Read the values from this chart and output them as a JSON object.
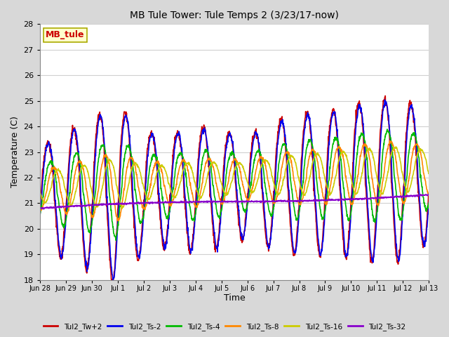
{
  "title": "MB Tule Tower: Tule Temps 2 (3/23/17-now)",
  "xlabel": "Time",
  "ylabel": "Temperature (C)",
  "ylim": [
    18.0,
    28.0
  ],
  "yticks": [
    18.0,
    19.0,
    20.0,
    21.0,
    22.0,
    23.0,
    24.0,
    25.0,
    26.0,
    27.0,
    28.0
  ],
  "xtick_labels": [
    "Jun 28",
    "Jun 29",
    "Jun 30",
    "Jul 1",
    "Jul 2",
    "Jul 3",
    "Jul 4",
    "Jul 5",
    "Jul 6",
    "Jul 7",
    "Jul 8",
    "Jul 9",
    "Jul 10",
    "Jul 11",
    "Jul 12",
    "Jul 13"
  ],
  "fig_bg_color": "#d8d8d8",
  "plot_bg_color": "#ffffff",
  "grid_color": "#d0d0d0",
  "series": [
    {
      "label": "Tul2_Tw+2",
      "color": "#cc0000",
      "lw": 1.2
    },
    {
      "label": "Tul2_Ts-2",
      "color": "#0000ee",
      "lw": 1.2
    },
    {
      "label": "Tul2_Ts-4",
      "color": "#00bb00",
      "lw": 1.2
    },
    {
      "label": "Tul2_Ts-8",
      "color": "#ff8800",
      "lw": 1.2
    },
    {
      "label": "Tul2_Ts-16",
      "color": "#cccc00",
      "lw": 1.2
    },
    {
      "label": "Tul2_Ts-32",
      "color": "#8800cc",
      "lw": 1.2
    }
  ],
  "watermark": "MB_tule",
  "watermark_color": "#cc0000",
  "watermark_bg": "#ffffcc",
  "watermark_border": "#aaaa00"
}
